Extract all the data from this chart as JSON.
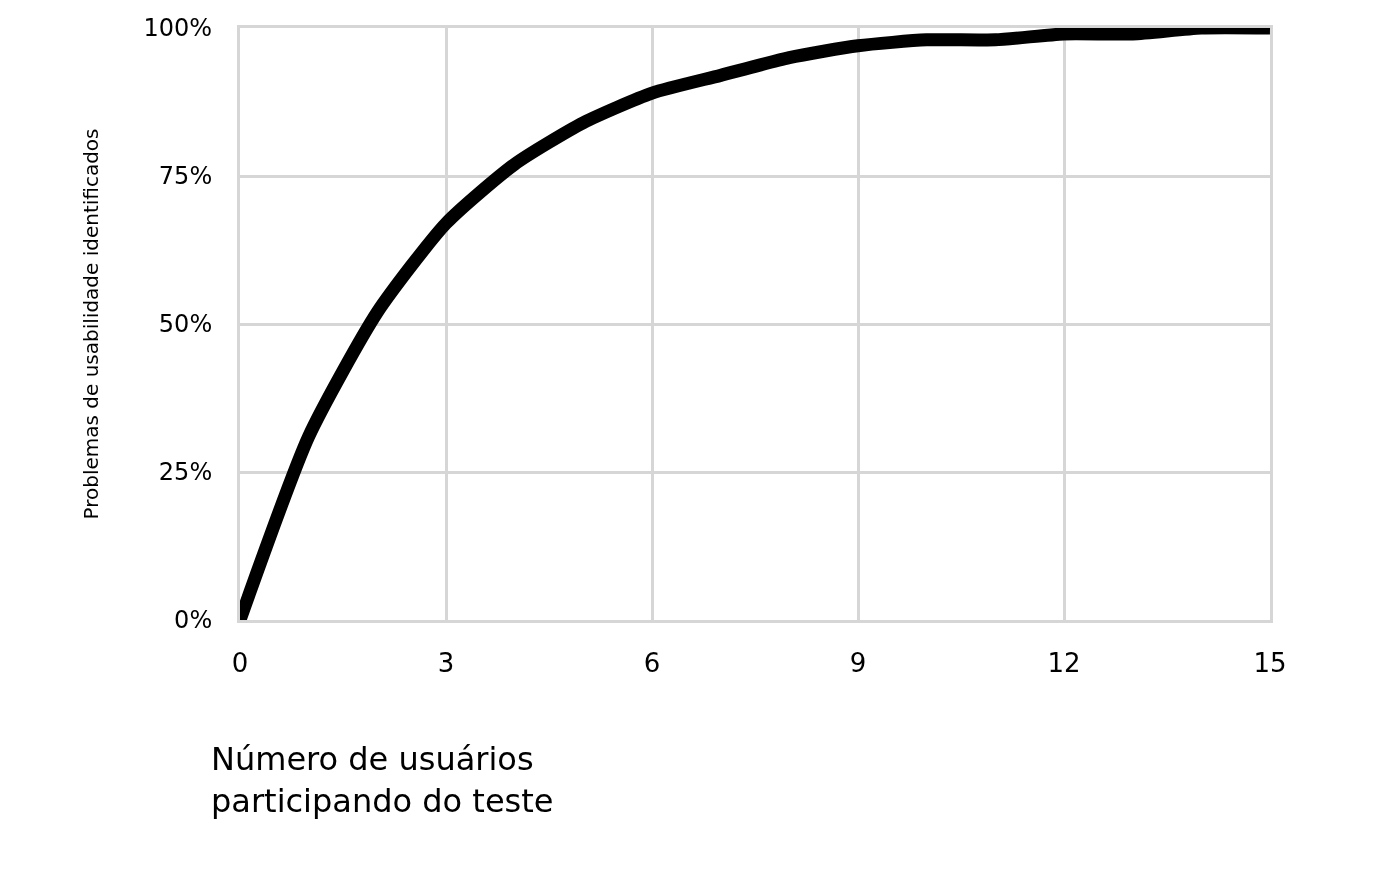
{
  "chart_data": {
    "type": "line",
    "xlabel": "Número de usuários\nparticipando do teste",
    "ylabel": "Problemas de usabilidade identificados",
    "x": [
      0,
      1,
      2,
      3,
      4,
      5,
      6,
      7,
      8,
      9,
      10,
      11,
      12,
      13,
      14,
      15
    ],
    "series": [
      {
        "color": "#000000",
        "values": [
          0,
          31,
          52,
          67,
          77,
          84,
          89,
          92,
          95,
          97,
          98,
          98,
          99,
          99,
          100,
          100
        ]
      }
    ],
    "xlim": [
      0,
      15
    ],
    "xticks": [
      0,
      3,
      6,
      9,
      12,
      15
    ],
    "ylim": [
      0,
      100
    ],
    "yticks": [
      {
        "value": 0,
        "label": "0%"
      },
      {
        "value": 25,
        "label": "25%"
      },
      {
        "value": 50,
        "label": "50%"
      },
      {
        "value": 75,
        "label": "75%"
      },
      {
        "value": 100,
        "label": "100%"
      }
    ],
    "grid": true,
    "marker": "none",
    "line_style": "solid"
  }
}
